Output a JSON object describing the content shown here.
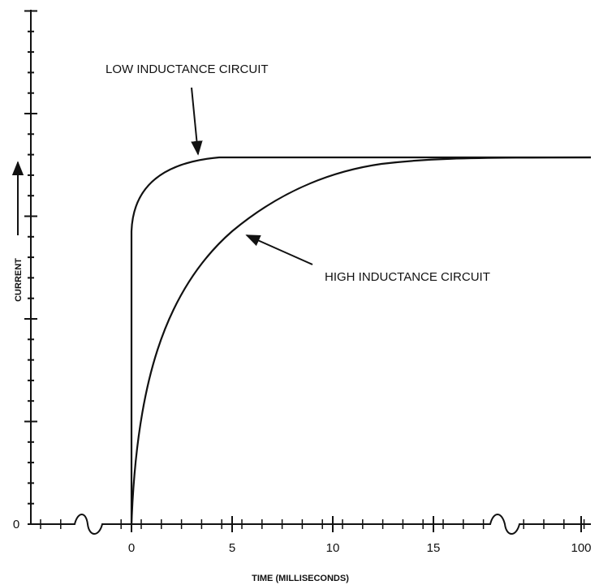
{
  "x_axis": {
    "label": "TIME (MILLISECONDS)",
    "ticks": [
      "0",
      "5",
      "10",
      "15",
      "100"
    ]
  },
  "y_axis": {
    "label": "CURRENT",
    "ticks": [
      "0"
    ]
  },
  "annotations": [
    "LOW INDUCTANCE CIRCUIT",
    "HIGH INDUCTANCE CIRCUIT"
  ]
}
